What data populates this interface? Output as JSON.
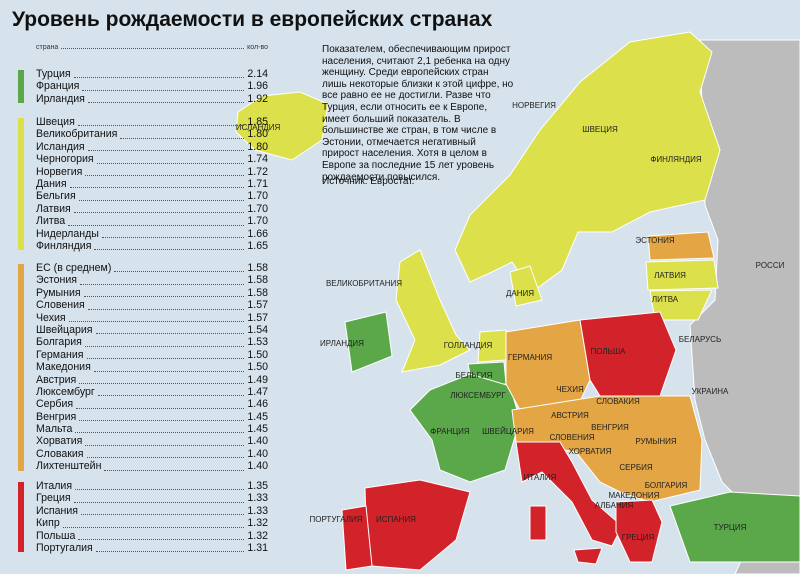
{
  "title": "Уровень рождаемости в европейских странах",
  "list_header": {
    "country": "страна",
    "count": "кол-во"
  },
  "groups": [
    {
      "color": "#5aa84a",
      "rows": [
        [
          "Турция",
          "2.14"
        ],
        [
          "Франция",
          "1.96"
        ],
        [
          "Ирландия",
          "1.92"
        ]
      ]
    },
    {
      "color": "#dbe04b",
      "rows": [
        [
          "Швеция",
          "1.85"
        ],
        [
          "Великобритания",
          "1.80"
        ],
        [
          "Исландия",
          "1.80"
        ],
        [
          "Черногория",
          "1.74"
        ],
        [
          "Норвегия",
          "1.72"
        ],
        [
          "Дания",
          "1.71"
        ],
        [
          "Бельгия",
          "1.70"
        ],
        [
          "Латвия",
          "1.70"
        ],
        [
          "Литва",
          "1.70"
        ],
        [
          "Нидерланды",
          "1.66"
        ],
        [
          "Финляндия",
          "1.65"
        ]
      ]
    },
    {
      "color": "#e4a544",
      "rows": [
        [
          "ЕС (в среднем)",
          "1.58"
        ],
        [
          "Эстония",
          "1.58"
        ],
        [
          "Румыния",
          "1.58"
        ],
        [
          "Словения",
          "1.57"
        ],
        [
          "Чехия",
          "1.57"
        ],
        [
          "Швейцария",
          "1.54"
        ],
        [
          "Болгария",
          "1.53"
        ],
        [
          "Германия",
          "1.50"
        ],
        [
          "Македония",
          "1.50"
        ],
        [
          "Австрия",
          "1.49"
        ],
        [
          "Люксембург",
          "1.47"
        ],
        [
          "Сербия",
          "1.46"
        ],
        [
          "Венгрия",
          "1.45"
        ],
        [
          "Мальта",
          "1.45"
        ],
        [
          "Хорватия",
          "1.40"
        ],
        [
          "Словакия",
          "1.40"
        ],
        [
          "Лихтенштейн",
          "1.40"
        ]
      ]
    },
    {
      "color": "#d2232a",
      "rows": [
        [
          "Италия",
          "1.35"
        ],
        [
          "Греция",
          "1.33"
        ],
        [
          "Испания",
          "1.33"
        ],
        [
          "Кипр",
          "1.32"
        ],
        [
          "Польша",
          "1.32"
        ],
        [
          "Португалия",
          "1.31"
        ]
      ]
    }
  ],
  "note": "Показателем, обеспечивающим прирост населения, считают 2,1 ребенка на одну женщину. Среди европейских стран лишь некоторые близки к этой цифре, но все равно ее не достигли. Разве что Турция, если относить ее к Европе, имеет больший показатель. В большинстве же стран, в том числе в Эстонии, отмечается негативный прирост населения. Хотя в целом в Европе за последние 15 лет уровень рождаемости повысился.",
  "source": "Источник: Евростат.",
  "map_labels": [
    [
      "ИСЛАНДИЯ",
      258,
      130
    ],
    [
      "НОРВЕГИЯ",
      534,
      108
    ],
    [
      "ШВЕЦИЯ",
      600,
      132
    ],
    [
      "ФИНЛЯНДИЯ",
      676,
      162
    ],
    [
      "ЭСТОНИЯ",
      655,
      243
    ],
    [
      "ЛАТВИЯ",
      670,
      278
    ],
    [
      "ЛИТВА",
      665,
      302
    ],
    [
      "РОССИ",
      770,
      268
    ],
    [
      "ВЕЛИКОБРИТАНИЯ",
      364,
      286
    ],
    [
      "ДАНИЯ",
      520,
      296
    ],
    [
      "ИРЛАНДИЯ",
      342,
      346
    ],
    [
      "ГОЛЛАНДИЯ",
      468,
      348
    ],
    [
      "БЕЛЬГИЯ",
      474,
      378
    ],
    [
      "ЛЮКСЕМБУРГ",
      478,
      398
    ],
    [
      "ГЕРМАНИЯ",
      530,
      360
    ],
    [
      "ПОЛЬША",
      608,
      354
    ],
    [
      "БЕЛАРУСЬ",
      700,
      342
    ],
    [
      "УКРАИНА",
      710,
      394
    ],
    [
      "ЧЕХИЯ",
      570,
      392
    ],
    [
      "СЛОВАКИЯ",
      618,
      404
    ],
    [
      "АВСТРИЯ",
      570,
      418
    ],
    [
      "ВЕНГРИЯ",
      610,
      430
    ],
    [
      "ШВЕЙЦАРИЯ",
      508,
      434
    ],
    [
      "ФРАНЦИЯ",
      450,
      434
    ],
    [
      "СЛОВЕНИЯ",
      572,
      440
    ],
    [
      "ХОРВАТИЯ",
      590,
      454
    ],
    [
      "СЕРБИЯ",
      636,
      470
    ],
    [
      "РУМЫНИЯ",
      656,
      444
    ],
    [
      "БОЛГАРИЯ",
      666,
      488
    ],
    [
      "МАКЕДОНИЯ",
      634,
      498
    ],
    [
      "АЛБАНИЯ",
      614,
      508
    ],
    [
      "ИТАЛИЯ",
      540,
      480
    ],
    [
      "ИСПАНИЯ",
      396,
      522
    ],
    [
      "ПОРТУГАЛИЯ",
      336,
      522
    ],
    [
      "ГРЕЦИЯ",
      638,
      540
    ],
    [
      "ТУРЦИЯ",
      730,
      530
    ]
  ]
}
